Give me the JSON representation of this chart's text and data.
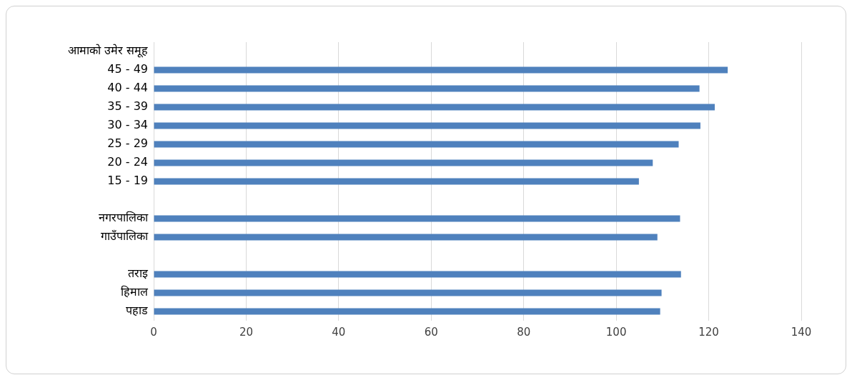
{
  "chart_data": {
    "type": "bar",
    "orientation": "horizontal",
    "categories": [
      "आमाको उमेर समूह",
      "45 - 49",
      "40 - 44",
      "35 - 39",
      "30 - 34",
      "25 - 29",
      "20 - 24",
      "15 - 19",
      null,
      "नगरपालिका",
      "गाउँपालिका",
      null,
      "तराइ",
      "हिमाल",
      "पहाड"
    ],
    "values": [
      null,
      124.1,
      118,
      121.3,
      118.2,
      113.5,
      107.9,
      104.9,
      null,
      113.8,
      108.9,
      null,
      114,
      109.8,
      109.5
    ],
    "color": "#4f81bd",
    "xlim": [
      0,
      140
    ],
    "xticks": [
      0,
      20,
      40,
      60,
      80,
      100,
      120,
      140
    ],
    "grid": "x",
    "legend": false
  }
}
